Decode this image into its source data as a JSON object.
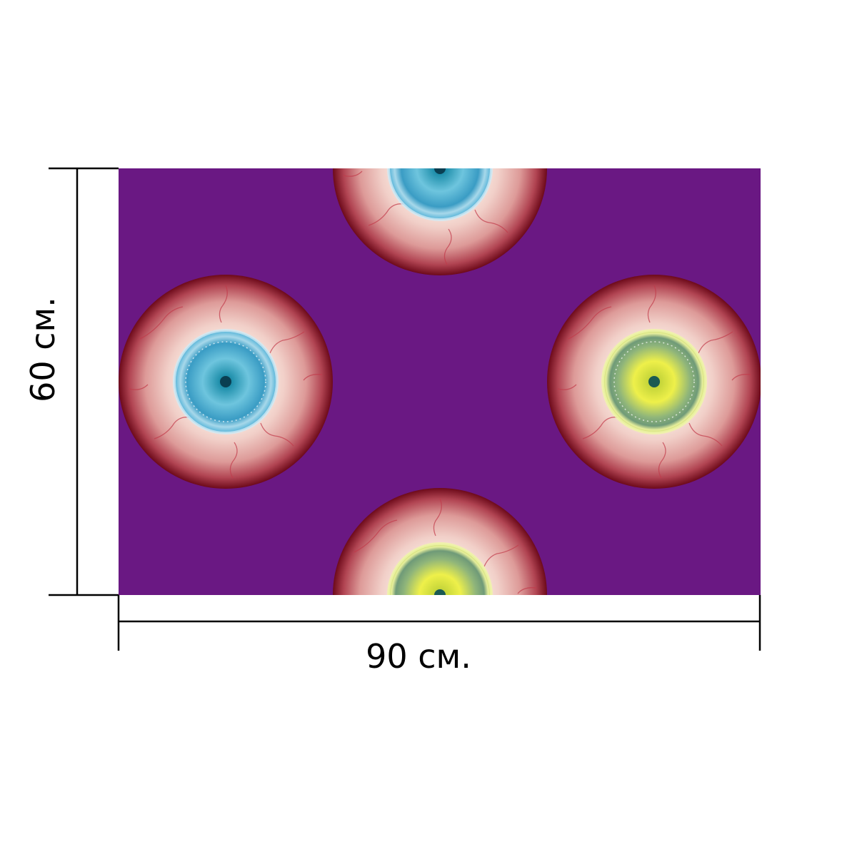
{
  "print": {
    "background_color": "#6a1883",
    "eyes": [
      {
        "name": "eye-top",
        "iris": "blue"
      },
      {
        "name": "eye-left",
        "iris": "blue"
      },
      {
        "name": "eye-right",
        "iris": "green-yellow"
      },
      {
        "name": "eye-bottom",
        "iris": "green-yellow"
      }
    ]
  },
  "dimensions": {
    "width_label": "90 см.",
    "height_label": "60 см."
  },
  "colors": {
    "purple": "#6a1883",
    "sclera_center": "#fdf0e6",
    "sclera_edge": "#7a1020",
    "iris_blue": "#52b4d6",
    "iris_green": "#7fa87a",
    "iris_yellow": "#e8e84a"
  }
}
